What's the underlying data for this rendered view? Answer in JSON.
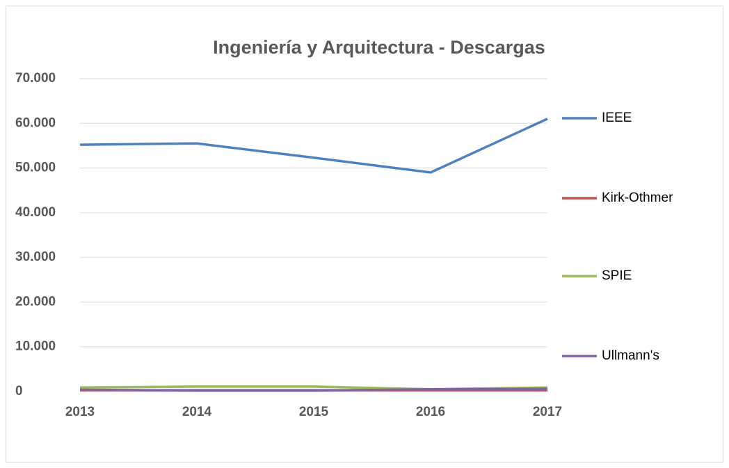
{
  "chart_data": {
    "type": "line",
    "title": "Ingeniería y Arquitectura - Descargas",
    "categories": [
      "2013",
      "2014",
      "2015",
      "2016",
      "2017"
    ],
    "series": [
      {
        "name": "IEEE",
        "color": "#4f81bd",
        "values": [
          55200,
          55500,
          52300,
          49000,
          61000
        ]
      },
      {
        "name": "Kirk-Othmer",
        "color": "#c0504d",
        "values": [
          300,
          300,
          300,
          300,
          300
        ]
      },
      {
        "name": "SPIE",
        "color": "#9bbb59",
        "values": [
          900,
          1100,
          1100,
          500,
          900
        ]
      },
      {
        "name": "Ullmann's",
        "color": "#8064a2",
        "values": [
          400,
          200,
          200,
          500,
          600
        ]
      }
    ],
    "ylim": [
      0,
      70000
    ],
    "yticks": [
      0,
      {
        "value": 10000,
        "label": "10.000"
      },
      {
        "value": 20000,
        "label": "20.000"
      },
      {
        "value": 30000,
        "label": "30.000"
      },
      {
        "value": 40000,
        "label": "40.000"
      },
      {
        "value": 50000,
        "label": "50.000"
      },
      {
        "value": 60000,
        "label": "60.000"
      },
      {
        "value": 70000,
        "label": "70.000"
      }
    ],
    "grid": true,
    "legend": "right"
  }
}
